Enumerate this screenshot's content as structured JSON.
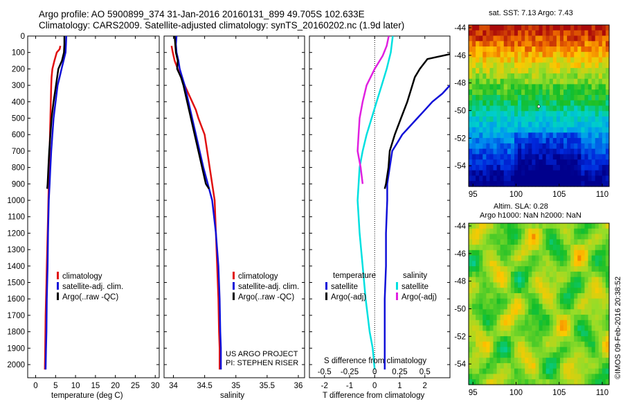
{
  "header": {
    "title_line1": "Argo profile: AO 5900899_374 31-Jan-2016 20160131_899 49.705S 102.633E",
    "title_line2": "Climatology: CARS2009. Satellite-adjusted climatology: synTS_20160202.nc (1.9d later)"
  },
  "colors": {
    "climatology": "#e01010",
    "satellite": "#1010d8",
    "argo": "#000000",
    "salinity_satellite": "#00e0e0",
    "salinity_argo": "#e020e0"
  },
  "chart_data": [
    {
      "type": "line",
      "id": "temperature",
      "xlabel": "temperature (deg C)",
      "xlim": [
        -2,
        31
      ],
      "ylim": [
        2080,
        0
      ],
      "xticks": [
        "0",
        "5",
        "10",
        "15",
        "20",
        "25",
        "30"
      ],
      "yticks": [
        "0",
        "100",
        "200",
        "300",
        "400",
        "500",
        "600",
        "700",
        "800",
        "900",
        "1000",
        "1100",
        "1200",
        "1300",
        "1400",
        "1500",
        "1600",
        "1700",
        "1800",
        "1900",
        "2000"
      ],
      "legend": [
        "climatology",
        "satellite-adj. clim.",
        "Argo(..raw -QC)"
      ],
      "series": [
        {
          "name": "climatology",
          "color": "#e01010",
          "x": [
            6.2,
            6.0,
            5.3,
            4.7,
            4.2,
            4.0,
            3.9,
            3.8,
            3.7,
            3.6,
            3.5,
            3.4,
            3.3,
            3.2,
            3.1,
            3.0,
            2.9,
            2.8,
            2.7,
            2.6,
            2.5,
            2.4,
            2.3
          ],
          "y": [
            60,
            80,
            100,
            150,
            200,
            250,
            300,
            400,
            500,
            600,
            700,
            800,
            900,
            1000,
            1100,
            1200,
            1300,
            1400,
            1500,
            1600,
            1700,
            1900,
            2030
          ]
        },
        {
          "name": "satellite-adj. clim.",
          "color": "#1010d8",
          "x": [
            7.7,
            7.6,
            7.5,
            7.0,
            6.5,
            6.0,
            5.5,
            5.0,
            4.5,
            4.2,
            3.9,
            3.7,
            3.5,
            3.3,
            3.1,
            3.0,
            2.9,
            2.8,
            2.7,
            2.6,
            2.5
          ],
          "y": [
            0,
            50,
            100,
            150,
            200,
            250,
            300,
            400,
            500,
            600,
            700,
            800,
            900,
            1000,
            1200,
            1400,
            1500,
            1600,
            1800,
            1900,
            2030
          ]
        },
        {
          "name": "Argo(..raw -QC)",
          "color": "#000000",
          "x": [
            7.2,
            7.2,
            7.1,
            6.6,
            5.7,
            5.1,
            4.5,
            4.0,
            3.7,
            3.4,
            3.2,
            3.0,
            2.9
          ],
          "y": [
            0,
            50,
            100,
            150,
            200,
            300,
            400,
            500,
            600,
            700,
            800,
            900,
            930
          ]
        }
      ]
    },
    {
      "type": "line",
      "id": "salinity",
      "xlabel": "salinity",
      "xlim": [
        33.85,
        36.1
      ],
      "ylim": [
        2080,
        0
      ],
      "xticks": [
        "34",
        "34.5",
        "35",
        "35.5",
        "36"
      ],
      "legend": [
        "climatology",
        "satellite-adj. clim.",
        "Argo(..raw -QC)"
      ],
      "series": [
        {
          "name": "climatology",
          "color": "#e01010",
          "x": [
            33.97,
            33.99,
            34.02,
            34.07,
            34.12,
            34.18,
            34.24,
            34.3,
            34.36,
            34.4,
            34.45,
            34.5,
            34.54,
            34.58,
            34.62,
            34.66,
            34.68,
            34.7,
            34.72,
            34.73,
            34.74,
            34.74,
            34.74
          ],
          "y": [
            60,
            100,
            150,
            200,
            250,
            300,
            350,
            400,
            450,
            500,
            550,
            600,
            700,
            800,
            900,
            1000,
            1200,
            1400,
            1600,
            1800,
            1900,
            2000,
            2030
          ]
        },
        {
          "name": "satellite-adj. clim.",
          "color": "#1010d8",
          "x": [
            34.05,
            34.04,
            34.05,
            34.08,
            34.1,
            34.14,
            34.18,
            34.24,
            34.3,
            34.36,
            34.42,
            34.48,
            34.55,
            34.62,
            34.68,
            34.72,
            34.74,
            34.75,
            34.76,
            34.76
          ],
          "y": [
            0,
            50,
            100,
            150,
            200,
            250,
            300,
            400,
            500,
            600,
            700,
            800,
            900,
            1000,
            1200,
            1400,
            1600,
            1800,
            1900,
            2030
          ]
        },
        {
          "name": "Argo(..raw -QC)",
          "color": "#000000",
          "x": [
            34.02,
            34.03,
            34.04,
            34.07,
            34.06,
            34.12,
            34.16,
            34.22,
            34.28,
            34.34,
            34.4,
            34.46,
            34.52,
            34.57
          ],
          "y": [
            0,
            50,
            100,
            150,
            200,
            250,
            300,
            400,
            500,
            600,
            700,
            800,
            900,
            930
          ]
        }
      ]
    },
    {
      "type": "line",
      "id": "differences",
      "xlabel": "T difference from climatology",
      "xlim": [
        -2.6,
        3.0
      ],
      "ylim": [
        2080,
        0
      ],
      "xticks": [
        "-2",
        "-1",
        "0",
        "1",
        "2"
      ],
      "secondary_axis": {
        "label": "S difference from climatology",
        "ticks": [
          "-0.5",
          "-0.25",
          "0",
          "0.25",
          "0.5"
        ],
        "xlim": [
          -0.65,
          0.75
        ]
      },
      "legend_groups": {
        "temperature": [
          "satellite",
          "Argo(-adj)"
        ],
        "salinity": [
          "satellite",
          "Argo(-adj)"
        ]
      },
      "series": [
        {
          "name": "temperature satellite",
          "color": "#1010d8",
          "x": [
            3.0,
            2.7,
            2.3,
            2.0,
            1.7,
            1.4,
            1.1,
            0.9,
            0.7,
            0.6,
            0.5,
            0.5,
            0.45,
            0.45,
            0.4,
            0.4,
            0.4
          ],
          "y": [
            300,
            350,
            400,
            450,
            500,
            550,
            600,
            650,
            700,
            800,
            900,
            1000,
            1200,
            1400,
            1600,
            1800,
            2030
          ]
        },
        {
          "name": "temperature Argo(-adj)",
          "color": "#000000",
          "x": [
            3.0,
            2.1,
            1.8,
            1.6,
            1.3,
            1.05,
            0.8,
            0.6,
            0.55,
            0.45,
            0.4
          ],
          "y": [
            110,
            140,
            200,
            250,
            400,
            500,
            600,
            700,
            800,
            900,
            930
          ]
        },
        {
          "name": "salinity satellite",
          "color": "#00e0e0",
          "x": [
            0.18,
            0.16,
            0.12,
            0.07,
            0.02,
            -0.03,
            -0.08,
            -0.12,
            -0.15,
            -0.17,
            -0.15,
            -0.12,
            -0.09,
            -0.05,
            -0.02,
            0.0
          ],
          "y": [
            0,
            100,
            200,
            300,
            400,
            500,
            600,
            700,
            800,
            1000,
            1200,
            1400,
            1600,
            1800,
            1900,
            2030
          ]
        },
        {
          "name": "salinity Argo(-adj)",
          "color": "#e020e0",
          "x": [
            0.14,
            0.12,
            0.08,
            0.0,
            -0.08,
            -0.12,
            -0.15,
            -0.16,
            -0.17,
            -0.14,
            -0.12
          ],
          "y": [
            0,
            60,
            120,
            200,
            300,
            400,
            500,
            600,
            700,
            800,
            900
          ]
        }
      ]
    },
    {
      "type": "heatmap",
      "id": "sst_map",
      "title": "sat. SST: 7.13 Argo: 7.43",
      "xticks": [
        "95",
        "100",
        "105",
        "110"
      ],
      "yticks": [
        "-44",
        "-46",
        "-48",
        "-50",
        "-52",
        "-54"
      ],
      "xlim": [
        94.5,
        110.8
      ],
      "ylim": [
        -55.5,
        -43.8
      ],
      "marker": [
        102.633,
        -49.705
      ]
    },
    {
      "type": "heatmap",
      "id": "sla_map",
      "title_lines": [
        "Altim. SLA: 0.28",
        "Argo h1000: NaN h2000: NaN"
      ],
      "xticks": [
        "95",
        "100",
        "105",
        "110"
      ],
      "yticks": [
        "-44",
        "-46",
        "-48",
        "-50",
        "-52",
        "-54"
      ],
      "xlim": [
        94.5,
        110.8
      ],
      "ylim": [
        -55.5,
        -43.8
      ]
    }
  ],
  "footer": {
    "project_line1": "US ARGO PROJECT",
    "project_line2": "PI: STEPHEN RISER",
    "stamp": "©IMOS 09-Feb-2016 20:38:52"
  }
}
